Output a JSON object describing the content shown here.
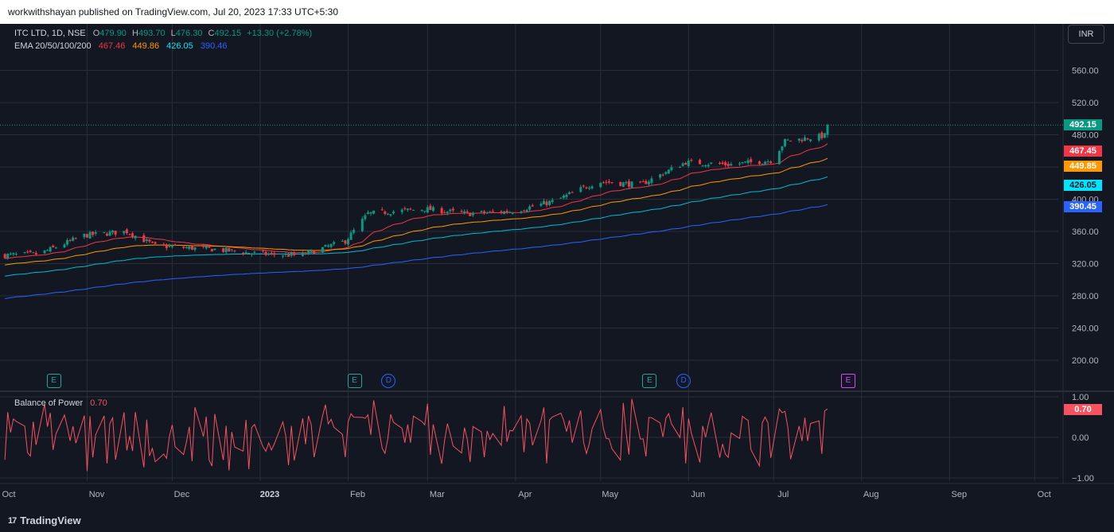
{
  "header": {
    "text": "workwithshayan published on TradingView.com, Jul 20, 2023 17:33 UTC+5:30"
  },
  "legend": {
    "symbol": "ITC LTD, 1D, NSE",
    "o_label": "O",
    "o_value": "479.90",
    "h_label": "H",
    "h_value": "493.70",
    "l_label": "L",
    "l_value": "476.30",
    "c_label": "C",
    "c_value": "492.15",
    "change": "+13.30 (+2.78%)",
    "ema_label": "EMA 20/50/100/200",
    "ema20": "467.46",
    "ema50": "449.86",
    "ema100": "426.05",
    "ema200": "390.46"
  },
  "currency": "INR",
  "price_tags": [
    {
      "label": "492.15",
      "value": 492.15,
      "bg": "#089981",
      "fg": "#ffffff"
    },
    {
      "label": "467.45",
      "value": 467.45,
      "bg": "#f23645",
      "fg": "#ffffff"
    },
    {
      "label": "449.85",
      "value": 449.85,
      "bg": "#ff9800",
      "fg": "#ffffff"
    },
    {
      "label": "426.05",
      "value": 426.05,
      "bg": "#00e5ff",
      "fg": "#131722"
    },
    {
      "label": "390.45",
      "value": 390.45,
      "bg": "#2962ff",
      "fg": "#ffffff"
    }
  ],
  "events": [
    {
      "type": "E",
      "month": "Oct",
      "day": 20,
      "style": "earnings"
    },
    {
      "type": "E",
      "month": "Feb",
      "day": 3,
      "style": "earnings"
    },
    {
      "type": "D",
      "month": "Feb",
      "day": 15,
      "style": "dividend"
    },
    {
      "type": "E",
      "month": "May",
      "day": 18,
      "style": "earnings"
    },
    {
      "type": "D",
      "month": "May",
      "day": 30,
      "style": "dividend"
    },
    {
      "type": "E",
      "month": "Jul",
      "day": 27,
      "style": "upcoming-earnings"
    }
  ],
  "indicator": {
    "name": "Balance of Power",
    "value": "0.70",
    "tag": "0.70"
  },
  "footer": {
    "brand": "TradingView"
  },
  "colors": {
    "background": "#131722",
    "grid": "#2a2e39",
    "up": "#089981",
    "down": "#f23645",
    "ema20": "#f23645",
    "ema50": "#ff9800",
    "ema100": "#00bcd4",
    "ema200": "#2962ff",
    "bop": "#f7525f"
  },
  "chart_data": [
    {
      "type": "candlestick",
      "title": "ITC LTD, 1D, NSE",
      "ylim": [
        170,
        580
      ],
      "yticks": [
        "200.00",
        "240.00",
        "280.00",
        "320.00",
        "360.00",
        "400.00",
        "440.00",
        "480.00",
        "520.00",
        "560.00"
      ],
      "xticks": [
        "Oct",
        "Nov",
        "Dec",
        "2023",
        "Feb",
        "Mar",
        "Apr",
        "May",
        "Jun",
        "Jul",
        "Aug",
        "Sep",
        "Oct"
      ],
      "last_price": 492.15,
      "close_anchors": [
        {
          "date": "2022-10-01",
          "close": 330
        },
        {
          "date": "2022-10-15",
          "close": 332
        },
        {
          "date": "2022-10-31",
          "close": 355
        },
        {
          "date": "2022-11-15",
          "close": 360
        },
        {
          "date": "2022-11-25",
          "close": 342
        },
        {
          "date": "2022-12-15",
          "close": 338
        },
        {
          "date": "2023-01-01",
          "close": 332
        },
        {
          "date": "2023-01-15",
          "close": 330
        },
        {
          "date": "2023-01-31",
          "close": 348
        },
        {
          "date": "2023-02-08",
          "close": 382
        },
        {
          "date": "2023-02-28",
          "close": 388
        },
        {
          "date": "2023-03-15",
          "close": 382
        },
        {
          "date": "2023-03-31",
          "close": 385
        },
        {
          "date": "2023-04-15",
          "close": 398
        },
        {
          "date": "2023-04-30",
          "close": 422
        },
        {
          "date": "2023-05-15",
          "close": 418
        },
        {
          "date": "2023-05-31",
          "close": 446
        },
        {
          "date": "2023-06-15",
          "close": 443
        },
        {
          "date": "2023-06-30",
          "close": 448
        },
        {
          "date": "2023-07-05",
          "close": 472
        },
        {
          "date": "2023-07-19",
          "close": 478.85
        },
        {
          "date": "2023-07-20",
          "close": 492.15
        }
      ],
      "series": [
        {
          "name": "EMA 20",
          "last": 467.46
        },
        {
          "name": "EMA 50",
          "last": 449.86
        },
        {
          "name": "EMA 100",
          "last": 426.05
        },
        {
          "name": "EMA 200",
          "last": 390.46
        }
      ]
    },
    {
      "type": "line",
      "title": "Balance of Power",
      "ylim": [
        -1.0,
        1.0
      ],
      "yticks": [
        "1.00",
        "0.00",
        "−1.00"
      ],
      "last_value": 0.7
    }
  ]
}
